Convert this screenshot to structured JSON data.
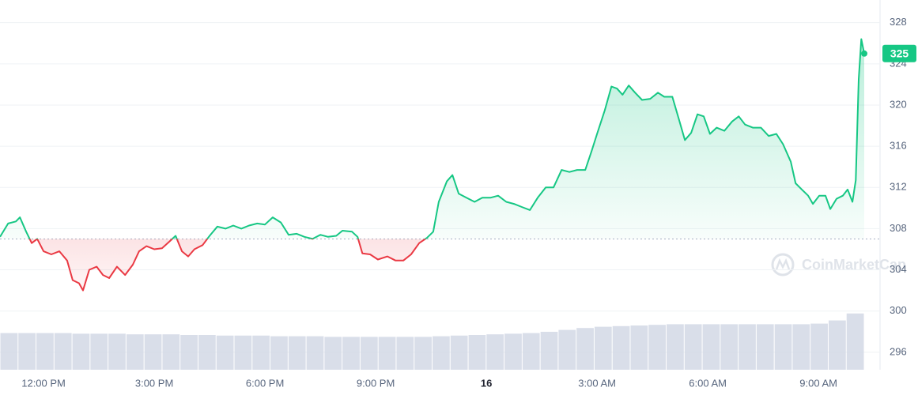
{
  "chart_data": {
    "type": "line",
    "x": [
      10.82,
      11.04,
      11.25,
      11.36,
      11.53,
      11.68,
      11.83,
      12.0,
      12.21,
      12.43,
      12.64,
      12.79,
      12.96,
      13.07,
      13.24,
      13.44,
      13.61,
      13.78,
      13.99,
      14.21,
      14.42,
      14.59,
      14.79,
      15.0,
      15.21,
      15.43,
      15.58,
      15.75,
      15.92,
      16.09,
      16.31,
      16.5,
      16.71,
      16.93,
      17.14,
      17.36,
      17.57,
      17.79,
      18.0,
      18.21,
      18.43,
      18.64,
      18.86,
      19.07,
      19.29,
      19.5,
      19.71,
      19.93,
      20.1,
      20.36,
      20.51,
      20.64,
      20.85,
      21.06,
      21.32,
      21.54,
      21.75,
      21.96,
      22.18,
      22.39,
      22.56,
      22.71,
      22.93,
      23.08,
      23.25,
      23.46,
      23.68,
      23.89,
      24.11,
      24.32,
      24.54,
      24.75,
      24.96,
      25.18,
      25.39,
      25.61,
      25.82,
      26.04,
      26.25,
      26.46,
      26.68,
      26.85,
      27.0,
      27.21,
      27.39,
      27.54,
      27.69,
      27.86,
      28.03,
      28.22,
      28.44,
      28.65,
      28.82,
      29.04,
      29.21,
      29.38,
      29.55,
      29.72,
      29.89,
      30.06,
      30.24,
      30.45,
      30.66,
      30.84,
      31.01,
      31.22,
      31.44,
      31.65,
      31.86,
      32.04,
      32.25,
      32.38,
      32.55,
      32.72,
      32.85,
      33.02,
      33.19,
      33.32,
      33.49,
      33.66,
      33.79,
      33.92,
      34.01,
      34.09,
      34.16,
      34.24
    ],
    "series": [
      {
        "color": "#16c784",
        "down_color": "#ea3943",
        "values": [
          307.2,
          308.5,
          308.7,
          309.1,
          307.7,
          306.6,
          307.0,
          305.8,
          305.5,
          305.8,
          304.9,
          303.0,
          302.7,
          302.0,
          304.0,
          304.3,
          303.5,
          303.2,
          304.3,
          303.5,
          304.5,
          305.8,
          306.3,
          306.0,
          306.1,
          306.8,
          307.3,
          305.8,
          305.3,
          306.0,
          306.4,
          307.3,
          308.2,
          308.0,
          308.3,
          308.0,
          308.3,
          308.5,
          308.4,
          309.1,
          308.6,
          307.4,
          307.5,
          307.2,
          307.0,
          307.4,
          307.2,
          307.3,
          307.8,
          307.7,
          307.2,
          305.6,
          305.5,
          305.0,
          305.3,
          304.9,
          304.9,
          305.5,
          306.6,
          307.1,
          307.7,
          310.6,
          312.6,
          313.2,
          311.4,
          311.0,
          310.6,
          311.0,
          311.0,
          311.2,
          310.6,
          310.4,
          310.1,
          309.8,
          311.0,
          312.0,
          312.0,
          313.7,
          313.5,
          313.7,
          313.7,
          315.5,
          317.2,
          319.5,
          321.8,
          321.6,
          321.0,
          321.9,
          321.2,
          320.5,
          320.6,
          321.2,
          320.8,
          320.8,
          318.7,
          316.6,
          317.3,
          319.1,
          318.9,
          317.2,
          317.8,
          317.5,
          318.4,
          318.9,
          318.1,
          317.8,
          317.8,
          317.0,
          317.2,
          316.2,
          314.5,
          312.4,
          311.8,
          311.2,
          310.4,
          311.2,
          311.2,
          309.9,
          310.9,
          311.2,
          311.8,
          310.6,
          312.7,
          322.5,
          326.4,
          325.0
        ]
      }
    ],
    "baseline": 307,
    "last_price": 325,
    "volume": {
      "color": "#cfd6e4",
      "lim": [
        0,
        100
      ],
      "values": [
        58,
        58,
        58,
        58,
        57,
        57,
        57,
        56,
        56,
        56,
        55,
        55,
        54,
        54,
        54,
        53,
        53,
        53,
        52,
        52,
        52,
        52,
        52,
        52,
        53,
        54,
        55,
        56,
        57,
        58,
        60,
        63,
        66,
        68,
        69,
        70,
        71,
        72,
        72,
        72,
        72,
        72,
        72,
        72,
        72,
        73,
        78,
        89
      ]
    },
    "xlim": [
      10.82,
      34.24
    ],
    "xticks": [
      {
        "value": 12,
        "label": "12:00 PM"
      },
      {
        "value": 15,
        "label": "3:00 PM"
      },
      {
        "value": 18,
        "label": "6:00 PM"
      },
      {
        "value": 21,
        "label": "9:00 PM"
      },
      {
        "value": 24,
        "label": "16"
      },
      {
        "value": 27,
        "label": "3:00 AM"
      },
      {
        "value": 30,
        "label": "6:00 AM"
      },
      {
        "value": 33,
        "label": "9:00 AM"
      }
    ],
    "ylim": [
      294.3,
      330.2
    ],
    "yticks": [
      296,
      300,
      304,
      308,
      312,
      316,
      320,
      324,
      328
    ],
    "grid": true,
    "watermark": "CoinMarketCap"
  }
}
